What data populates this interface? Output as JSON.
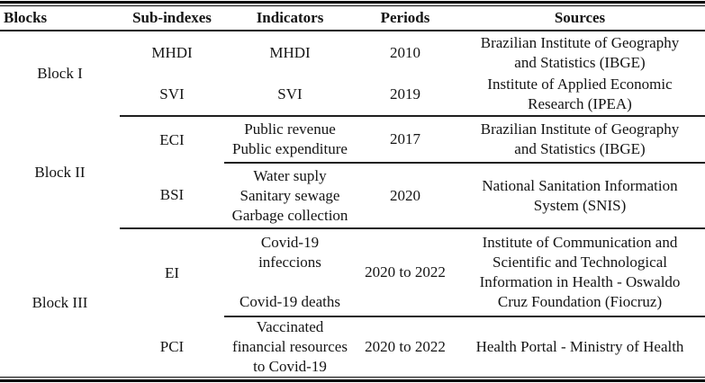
{
  "colors": {
    "text": "#141414",
    "rules": "#0a0a0a",
    "background": "#ffffff"
  },
  "table": {
    "columns": {
      "blocks": "Blocks",
      "sub_indexes": "Sub-indexes",
      "indicators": "Indicators",
      "periods": "Periods",
      "sources": "Sources"
    },
    "blocks": [
      {
        "label": "Block I",
        "rows": [
          {
            "sub_index": "MHDI",
            "indicators": "MHDI",
            "period": "2010",
            "source": "Brazilian Institute of Geography\nand Statistics (IBGE)"
          },
          {
            "sub_index": "SVI",
            "indicators": "SVI",
            "period": "2019",
            "source": "Institute of Applied Economic\nResearch (IPEA)"
          }
        ]
      },
      {
        "label": "Block II",
        "rows": [
          {
            "sub_index": "ECI",
            "indicators": "Public revenue\nPublic expenditure",
            "period": "2017",
            "source": "Brazilian Institute of Geography\nand Statistics (IBGE)"
          },
          {
            "sub_index": "BSI",
            "indicators": "Water suply\nSanitary sewage\nGarbage collection",
            "period": "2020",
            "source": "National Sanitation Information\nSystem (SNIS)"
          }
        ]
      },
      {
        "label": "Block III",
        "rows": [
          {
            "sub_index": "EI",
            "indicators": "Covid-19\ninfeccions\n\nCovid-19 deaths",
            "period": "2020 to 2022",
            "source": "Institute of Communication and\nScientific and Technological\nInformation in Health - Oswaldo\nCruz Foundation (Fiocruz)"
          },
          {
            "sub_index": "PCI",
            "indicators": "Vaccinated\nfinancial resources\nto Covid-19",
            "period": "2020 to 2022",
            "source": "Health Portal - Ministry of Health"
          }
        ]
      }
    ]
  }
}
